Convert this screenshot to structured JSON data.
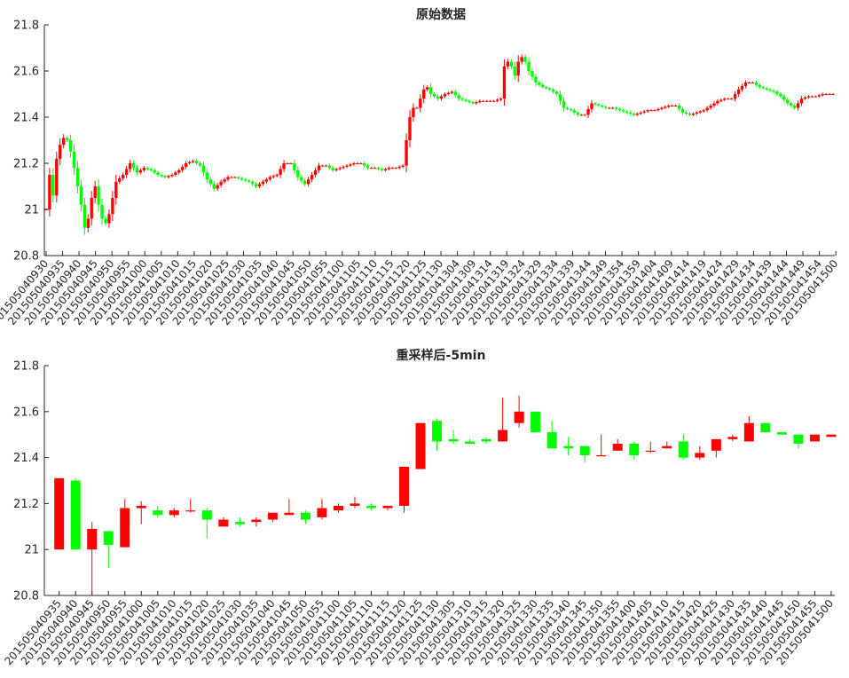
{
  "colors": {
    "up": "#ff0000",
    "down": "#00ff00",
    "axis": "#262626",
    "background": "#ffffff"
  },
  "chart_data": [
    {
      "type": "candlestick",
      "title": "原始数据",
      "ylim": [
        20.8,
        21.8
      ],
      "yticks": [
        20.8,
        21,
        21.2,
        21.4,
        21.6,
        21.8
      ],
      "ytick_labels": [
        "20.8",
        "21",
        "21.2",
        "21.4",
        "21.6",
        "21.8"
      ],
      "xtick_labels": [
        "201505040930",
        "201505040935",
        "201505040940",
        "201505040945",
        "201505040950",
        "201505040955",
        "201505041000",
        "201505041005",
        "201505041010",
        "201505041015",
        "201505041020",
        "201505041025",
        "201505041030",
        "201505041035",
        "201505041040",
        "201505041045",
        "201505041050",
        "201505041055",
        "201505041100",
        "201505041105",
        "201505041110",
        "201505041115",
        "201505041120",
        "201505041125",
        "201505041130",
        "201505041304",
        "201505041309",
        "201505041314",
        "201505041319",
        "201505041324",
        "201505041329",
        "201505041334",
        "201505041339",
        "201505041344",
        "201505041349",
        "201505041354",
        "201505041359",
        "201505041404",
        "201505041409",
        "201505041414",
        "201505041419",
        "201505041424",
        "201505041429",
        "201505041434",
        "201505041439",
        "201505041444",
        "201505041449",
        "201505041454",
        "201505041500"
      ],
      "close_path": [
        [
          0,
          21.0
        ],
        [
          1,
          21.15
        ],
        [
          2,
          21.06
        ],
        [
          3,
          21.22
        ],
        [
          4,
          21.28
        ],
        [
          5,
          21.31
        ],
        [
          6,
          21.3
        ],
        [
          7,
          21.25
        ],
        [
          8,
          21.18
        ],
        [
          9,
          21.1
        ],
        [
          10,
          21.02
        ],
        [
          11,
          20.92
        ],
        [
          12,
          20.96
        ],
        [
          13,
          21.05
        ],
        [
          14,
          21.1
        ],
        [
          15,
          21.02
        ],
        [
          16,
          20.96
        ],
        [
          17,
          20.94
        ],
        [
          18,
          20.98
        ],
        [
          19,
          21.05
        ],
        [
          20,
          21.12
        ],
        [
          22,
          21.15
        ],
        [
          24,
          21.2
        ],
        [
          26,
          21.16
        ],
        [
          28,
          21.18
        ],
        [
          30,
          21.17
        ],
        [
          32,
          21.15
        ],
        [
          34,
          21.14
        ],
        [
          36,
          21.15
        ],
        [
          38,
          21.17
        ],
        [
          40,
          21.2
        ],
        [
          42,
          21.21
        ],
        [
          44,
          21.19
        ],
        [
          46,
          21.13
        ],
        [
          48,
          21.09
        ],
        [
          50,
          21.12
        ],
        [
          52,
          21.14
        ],
        [
          54,
          21.14
        ],
        [
          56,
          21.13
        ],
        [
          58,
          21.12
        ],
        [
          60,
          21.1
        ],
        [
          62,
          21.12
        ],
        [
          64,
          21.14
        ],
        [
          66,
          21.15
        ],
        [
          68,
          21.2
        ],
        [
          70,
          21.2
        ],
        [
          72,
          21.14
        ],
        [
          74,
          21.11
        ],
        [
          76,
          21.15
        ],
        [
          78,
          21.19
        ],
        [
          80,
          21.19
        ],
        [
          82,
          21.17
        ],
        [
          84,
          21.18
        ],
        [
          86,
          21.19
        ],
        [
          88,
          21.2
        ],
        [
          90,
          21.2
        ],
        [
          92,
          21.18
        ],
        [
          94,
          21.18
        ],
        [
          96,
          21.17
        ],
        [
          98,
          21.18
        ],
        [
          100,
          21.18
        ],
        [
          102,
          21.19
        ],
        [
          103,
          21.3
        ],
        [
          104,
          21.4
        ],
        [
          105,
          21.44
        ],
        [
          106,
          21.44
        ],
        [
          107,
          21.48
        ],
        [
          108,
          21.52
        ],
        [
          109,
          21.53
        ],
        [
          110,
          21.5
        ],
        [
          112,
          21.48
        ],
        [
          114,
          21.5
        ],
        [
          116,
          21.51
        ],
        [
          118,
          21.48
        ],
        [
          120,
          21.47
        ],
        [
          122,
          21.46
        ],
        [
          124,
          21.47
        ],
        [
          126,
          21.47
        ],
        [
          128,
          21.47
        ],
        [
          130,
          21.48
        ],
        [
          131,
          21.62
        ],
        [
          132,
          21.64
        ],
        [
          133,
          21.62
        ],
        [
          134,
          21.58
        ],
        [
          135,
          21.64
        ],
        [
          136,
          21.66
        ],
        [
          137,
          21.64
        ],
        [
          138,
          21.6
        ],
        [
          140,
          21.55
        ],
        [
          142,
          21.53
        ],
        [
          144,
          21.52
        ],
        [
          146,
          21.5
        ],
        [
          148,
          21.44
        ],
        [
          150,
          21.43
        ],
        [
          152,
          21.41
        ],
        [
          154,
          21.41
        ],
        [
          156,
          21.46
        ],
        [
          158,
          21.45
        ],
        [
          160,
          21.44
        ],
        [
          162,
          21.44
        ],
        [
          164,
          21.43
        ],
        [
          166,
          21.42
        ],
        [
          168,
          21.41
        ],
        [
          170,
          21.42
        ],
        [
          172,
          21.43
        ],
        [
          174,
          21.43
        ],
        [
          176,
          21.44
        ],
        [
          178,
          21.45
        ],
        [
          180,
          21.45
        ],
        [
          182,
          21.42
        ],
        [
          184,
          21.41
        ],
        [
          186,
          21.42
        ],
        [
          188,
          21.43
        ],
        [
          190,
          21.45
        ],
        [
          192,
          21.47
        ],
        [
          194,
          21.48
        ],
        [
          196,
          21.48
        ],
        [
          198,
          21.52
        ],
        [
          200,
          21.55
        ],
        [
          202,
          21.55
        ],
        [
          204,
          21.53
        ],
        [
          206,
          21.52
        ],
        [
          208,
          21.51
        ],
        [
          210,
          21.49
        ],
        [
          212,
          21.46
        ],
        [
          214,
          21.44
        ],
        [
          216,
          21.48
        ],
        [
          218,
          21.49
        ],
        [
          220,
          21.49
        ],
        [
          222,
          21.5
        ],
        [
          224,
          21.5
        ],
        [
          225,
          21.5
        ]
      ]
    },
    {
      "type": "candlestick",
      "title": "重采样后-5min",
      "ylim": [
        20.8,
        21.8
      ],
      "yticks": [
        20.8,
        21,
        21.2,
        21.4,
        21.6,
        21.8
      ],
      "ytick_labels": [
        "20.8",
        "21",
        "21.2",
        "21.4",
        "21.6",
        "21.8"
      ],
      "xtick_labels": [
        "201505040935",
        "201505040940",
        "201505040945",
        "201505040950",
        "201505040955",
        "201505041000",
        "201505041005",
        "201505041010",
        "201505041015",
        "201505041020",
        "201505041025",
        "201505041030",
        "201505041035",
        "201505041040",
        "201505041045",
        "201505041050",
        "201505041055",
        "201505041100",
        "201505041105",
        "201505041110",
        "201505041115",
        "201505041120",
        "201505041125",
        "201505041130",
        "201505041305",
        "201505041310",
        "201505041315",
        "201505041320",
        "201505041325",
        "201505041330",
        "201505041335",
        "201505041340",
        "201505041345",
        "201505041350",
        "201505041355",
        "201505041400",
        "201505041405",
        "201505041410",
        "201505041415",
        "201505041420",
        "201505041425",
        "201505041430",
        "201505041435",
        "201505041440",
        "201505041445",
        "201505041450",
        "201505041455",
        "201505041500"
      ],
      "candles": [
        {
          "open": 21.0,
          "high": 21.31,
          "low": 21.0,
          "close": 21.31
        },
        {
          "open": 21.3,
          "high": 21.31,
          "low": 21.0,
          "close": 21.0
        },
        {
          "open": 21.0,
          "high": 21.12,
          "low": 20.8,
          "close": 21.09
        },
        {
          "open": 21.08,
          "high": 21.08,
          "low": 20.92,
          "close": 21.02
        },
        {
          "open": 21.01,
          "high": 21.22,
          "low": 21.01,
          "close": 21.18
        },
        {
          "open": 21.18,
          "high": 21.21,
          "low": 21.11,
          "close": 21.19
        },
        {
          "open": 21.17,
          "high": 21.19,
          "low": 21.14,
          "close": 21.15
        },
        {
          "open": 21.15,
          "high": 21.18,
          "low": 21.14,
          "close": 21.17
        },
        {
          "open": 21.17,
          "high": 21.22,
          "low": 21.16,
          "close": 21.17
        },
        {
          "open": 21.17,
          "high": 21.18,
          "low": 21.05,
          "close": 21.13
        },
        {
          "open": 21.1,
          "high": 21.14,
          "low": 21.1,
          "close": 21.13
        },
        {
          "open": 21.12,
          "high": 21.14,
          "low": 21.1,
          "close": 21.11
        },
        {
          "open": 21.12,
          "high": 21.14,
          "low": 21.1,
          "close": 21.13
        },
        {
          "open": 21.13,
          "high": 21.16,
          "low": 21.12,
          "close": 21.16
        },
        {
          "open": 21.15,
          "high": 21.22,
          "low": 21.15,
          "close": 21.16
        },
        {
          "open": 21.16,
          "high": 21.17,
          "low": 21.11,
          "close": 21.13
        },
        {
          "open": 21.14,
          "high": 21.22,
          "low": 21.13,
          "close": 21.18
        },
        {
          "open": 21.17,
          "high": 21.2,
          "low": 21.16,
          "close": 21.19
        },
        {
          "open": 21.19,
          "high": 21.23,
          "low": 21.18,
          "close": 21.2
        },
        {
          "open": 21.19,
          "high": 21.2,
          "low": 21.17,
          "close": 21.18
        },
        {
          "open": 21.18,
          "high": 21.19,
          "low": 21.17,
          "close": 21.19
        },
        {
          "open": 21.19,
          "high": 21.36,
          "low": 21.16,
          "close": 21.36
        },
        {
          "open": 21.35,
          "high": 21.55,
          "low": 21.35,
          "close": 21.55
        },
        {
          "open": 21.56,
          "high": 21.57,
          "low": 21.43,
          "close": 21.47
        },
        {
          "open": 21.48,
          "high": 21.52,
          "low": 21.46,
          "close": 21.47
        },
        {
          "open": 21.47,
          "high": 21.48,
          "low": 21.46,
          "close": 21.46
        },
        {
          "open": 21.48,
          "high": 21.49,
          "low": 21.46,
          "close": 21.47
        },
        {
          "open": 21.47,
          "high": 21.66,
          "low": 21.47,
          "close": 21.52
        },
        {
          "open": 21.55,
          "high": 21.67,
          "low": 21.53,
          "close": 21.6
        },
        {
          "open": 21.6,
          "high": 21.6,
          "low": 21.51,
          "close": 21.51
        },
        {
          "open": 21.51,
          "high": 21.56,
          "low": 21.44,
          "close": 21.44
        },
        {
          "open": 21.45,
          "high": 21.49,
          "low": 21.41,
          "close": 21.44
        },
        {
          "open": 21.45,
          "high": 21.45,
          "low": 21.38,
          "close": 21.41
        },
        {
          "open": 21.41,
          "high": 21.5,
          "low": 21.41,
          "close": 21.41
        },
        {
          "open": 21.43,
          "high": 21.48,
          "low": 21.43,
          "close": 21.46
        },
        {
          "open": 21.46,
          "high": 21.47,
          "low": 21.39,
          "close": 21.41
        },
        {
          "open": 21.43,
          "high": 21.47,
          "low": 21.42,
          "close": 21.43
        },
        {
          "open": 21.44,
          "high": 21.47,
          "low": 21.44,
          "close": 21.45
        },
        {
          "open": 21.47,
          "high": 21.5,
          "low": 21.39,
          "close": 21.4
        },
        {
          "open": 21.4,
          "high": 21.45,
          "low": 21.39,
          "close": 21.42
        },
        {
          "open": 21.43,
          "high": 21.48,
          "low": 21.4,
          "close": 21.48
        },
        {
          "open": 21.48,
          "high": 21.5,
          "low": 21.47,
          "close": 21.49
        },
        {
          "open": 21.47,
          "high": 21.58,
          "low": 21.47,
          "close": 21.55
        },
        {
          "open": 21.55,
          "high": 21.55,
          "low": 21.51,
          "close": 21.51
        },
        {
          "open": 21.51,
          "high": 21.51,
          "low": 21.5,
          "close": 21.5
        },
        {
          "open": 21.5,
          "high": 21.5,
          "low": 21.44,
          "close": 21.46
        },
        {
          "open": 21.47,
          "high": 21.5,
          "low": 21.47,
          "close": 21.5
        },
        {
          "open": 21.49,
          "high": 21.5,
          "low": 21.49,
          "close": 21.5
        }
      ]
    }
  ]
}
